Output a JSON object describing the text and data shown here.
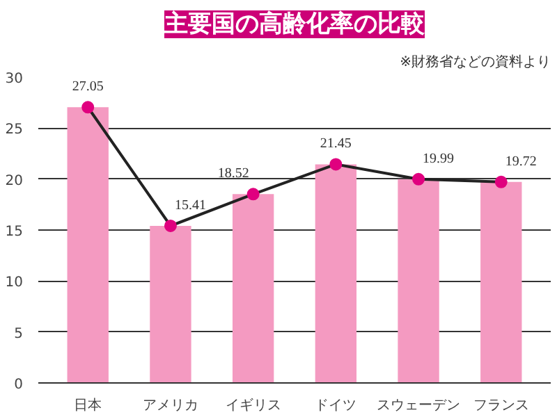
{
  "chart_data": {
    "type": "bar",
    "title": "主要国の高齢化率の比較",
    "annotations": [
      "※財務省などの資料より"
    ],
    "categories": [
      "日本",
      "アメリカ",
      "イギリス",
      "ドイツ",
      "スウェーデン",
      "フランス"
    ],
    "series": [
      {
        "color": "#f49ac1",
        "values": [
          27.05,
          15.41,
          18.52,
          21.45,
          19.99,
          19.72
        ]
      },
      {
        "type": "line",
        "color": "#222222",
        "colors": [
          "#e0007f",
          "#e0007f",
          "#e0007f",
          "#e0007f",
          "#e0007f",
          "#e0007f"
        ],
        "marker": "circle",
        "values": [
          27.05,
          15.41,
          18.52,
          21.45,
          19.99,
          19.72
        ],
        "value_labels": [
          "27.05",
          "15.41",
          "18.52",
          "21.45",
          "19.99",
          "19.72"
        ]
      }
    ],
    "ylim": [
      0,
      30
    ],
    "yticks": [
      0,
      5,
      10,
      15,
      20,
      25,
      30
    ],
    "grid": "y"
  }
}
